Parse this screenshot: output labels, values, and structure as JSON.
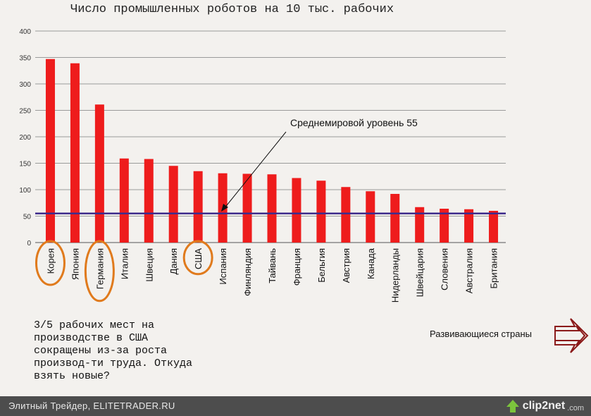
{
  "chart_data": {
    "type": "bar",
    "title": "Число промышленных роботов на 10 тыс. рабочих",
    "categories": [
      "Корея",
      "Япония",
      "Германия",
      "Италия",
      "Швеция",
      "Дания",
      "США",
      "Испания",
      "Финляндия",
      "Тайвань",
      "Франция",
      "Бельгия",
      "Австрия",
      "Канада",
      "Нидерланды",
      "Швейцария",
      "Словения",
      "Австралия",
      "Британия"
    ],
    "values": [
      347,
      339,
      261,
      159,
      158,
      145,
      135,
      131,
      130,
      129,
      122,
      117,
      105,
      97,
      92,
      67,
      64,
      63,
      60
    ],
    "ylim": [
      0,
      400
    ],
    "yticks": [
      0,
      50,
      100,
      150,
      200,
      250,
      300,
      350,
      400
    ],
    "bar_color": "#ee1c1c",
    "reference_line": {
      "value": 55,
      "label": "Среднемировой уровень 55",
      "color": "#3f2c8c"
    },
    "highlighted_categories": [
      "Корея",
      "Германия",
      "США"
    ],
    "highlight_color": "#e07a1c"
  },
  "note": {
    "lines": [
      "3/5 рабочих мест на",
      "производстве в США",
      "сокращены из-за роста",
      "производ-ти труда. Откуда",
      "взять новые?"
    ]
  },
  "developing": {
    "label": "Развивающиеся страны",
    "arrow_color": "#8b1a1a"
  },
  "footer": {
    "text": "Элитный Трейдер, ELITETRADER.RU",
    "brand_name": "clip2net",
    "brand_domain": ".com",
    "brand_color": "#7cc43c"
  }
}
